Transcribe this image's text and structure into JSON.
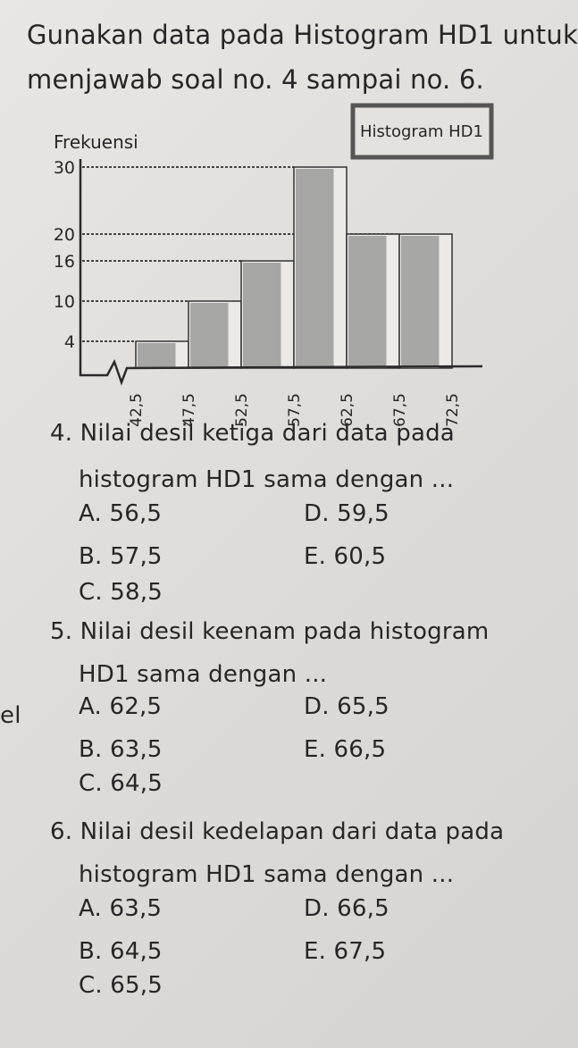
{
  "intro": {
    "line1": "Gunakan data pada Histogram HD1 untuk",
    "line2": "menjawab soal no. 4 sampai no. 6."
  },
  "margin_fragment": "el",
  "chart_data": {
    "type": "bar",
    "title": "Histogram HD1",
    "ylabel": "Frekuensi",
    "xlabel": "",
    "x_ticks": [
      "42,5",
      "47,5",
      "52,5",
      "57,5",
      "62,5",
      "67,5",
      "72,5"
    ],
    "y_ticks": [
      "4",
      "10",
      "16",
      "20",
      "30"
    ],
    "bins": [
      {
        "from": 42.5,
        "to": 47.5,
        "value": 4
      },
      {
        "from": 47.5,
        "to": 52.5,
        "value": 10
      },
      {
        "from": 52.5,
        "to": 57.5,
        "value": 16
      },
      {
        "from": 57.5,
        "to": 62.5,
        "value": 30
      },
      {
        "from": 62.5,
        "to": 67.5,
        "value": 20
      },
      {
        "from": 67.5,
        "to": 72.5,
        "value": 20
      }
    ],
    "ylim": [
      0,
      32
    ],
    "grid": "dashed lines to bar tops",
    "legend": "top-right title box",
    "bar_color": "#9a9a98"
  },
  "questions": [
    {
      "line1": "4. Nilai desil ketiga dari data pada",
      "line2": "histogram HD1 sama dengan ...",
      "options": {
        "A": "A. 56,5",
        "B": "B. 57,5",
        "C": "C. 58,5",
        "D": "D. 59,5",
        "E": "E. 60,5"
      }
    },
    {
      "line1": "5. Nilai desil keenam pada histogram",
      "line2": "HD1 sama dengan ...",
      "options": {
        "A": "A. 62,5",
        "B": "B. 63,5",
        "C": "C. 64,5",
        "D": "D. 65,5",
        "E": "E. 66,5"
      }
    },
    {
      "line1": "6. Nilai desil kedelapan dari data pada",
      "line2": "histogram HD1 sama dengan ...",
      "options": {
        "A": "A. 63,5",
        "B": "B. 64,5",
        "C": "C. 65,5",
        "D": "D. 66,5",
        "E": "E. 67,5"
      }
    }
  ]
}
